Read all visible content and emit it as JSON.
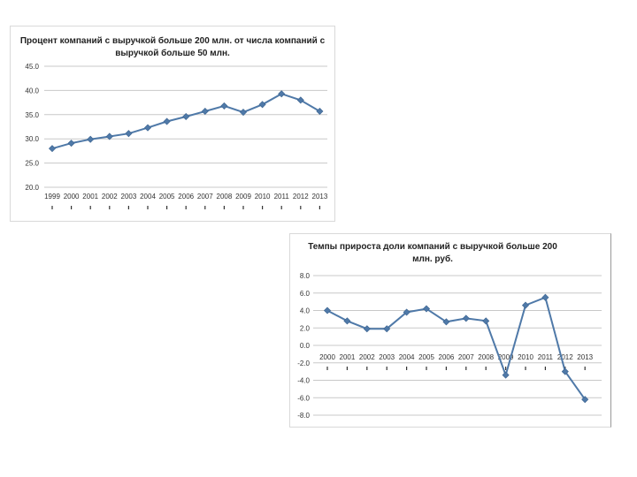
{
  "colors": {
    "series": "#4f79a8",
    "grid": "#c8c8c8",
    "background": "#ffffff"
  },
  "chart_data": [
    {
      "type": "line",
      "title": "Процент компаний с выручкой больше 200 млн. от числа компаний с выручкой больше 50 млн.",
      "categories": [
        "1999",
        "2000",
        "2001",
        "2002",
        "2003",
        "2004",
        "2005",
        "2006",
        "2007",
        "2008",
        "2009",
        "2010",
        "2011",
        "2012",
        "2013"
      ],
      "series": [
        {
          "values": [
            28.0,
            29.1,
            29.9,
            30.5,
            31.1,
            32.3,
            33.6,
            34.6,
            35.7,
            36.8,
            35.5,
            37.1,
            39.3,
            38.0,
            35.7
          ]
        }
      ],
      "ylim": [
        20.0,
        45.0
      ],
      "yticks": [
        "20.0",
        "25.0",
        "30.0",
        "35.0",
        "40.0",
        "45.0"
      ],
      "grid": true,
      "legend": "none"
    },
    {
      "type": "line",
      "title": "Темпы прироста доли компаний с выручкой больше 200 млн. руб.",
      "categories": [
        "2000",
        "2001",
        "2002",
        "2003",
        "2004",
        "2005",
        "2006",
        "2007",
        "2008",
        "2009",
        "2010",
        "2011",
        "2012",
        "2013"
      ],
      "series": [
        {
          "values": [
            4.0,
            2.8,
            1.9,
            1.9,
            3.8,
            4.2,
            2.7,
            3.1,
            2.8,
            -3.4,
            4.6,
            5.5,
            -3.0,
            -6.2
          ]
        }
      ],
      "ylim": [
        -8.0,
        8.0
      ],
      "yticks": [
        "-8.0",
        "-6.0",
        "-4.0",
        "-2.0",
        "0.0",
        "2.0",
        "4.0",
        "6.0",
        "8.0"
      ],
      "grid": true,
      "legend": "none"
    }
  ]
}
